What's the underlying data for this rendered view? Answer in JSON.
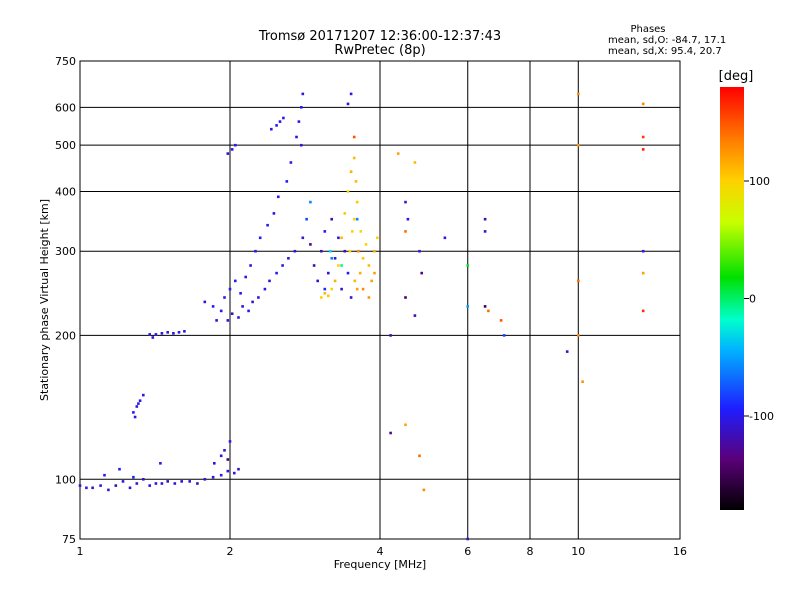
{
  "chart_data": {
    "type": "scatter",
    "title": "Tromsø 20171207 12:36:00-12:37:43",
    "subtitle": "RwPretec (8p)",
    "xlabel": "Frequency [MHz]",
    "ylabel": "Stationary phase Virtual Height [km]",
    "x_scale": "log",
    "y_scale": "log",
    "xlim": [
      1,
      16
    ],
    "ylim": [
      75,
      750
    ],
    "x_ticks": [
      1,
      2,
      4,
      6,
      8,
      10,
      16
    ],
    "x_tick_labels": [
      "1",
      "2",
      "4",
      "6",
      "8",
      "10",
      "16"
    ],
    "y_ticks": [
      75,
      100,
      200,
      300,
      400,
      500,
      600,
      750
    ],
    "y_tick_labels": [
      "75",
      "100",
      "200",
      "300",
      "400",
      "500",
      "600",
      "750"
    ],
    "grid": true,
    "stats": {
      "title": "Phases",
      "line1": "mean, sd,O: -84.7, 17.1",
      "line2": "mean, sd,X:  95.4, 20.7"
    },
    "colorbar": {
      "label": "[deg]",
      "range": [
        -180,
        180
      ],
      "ticks": [
        100,
        0,
        -100
      ],
      "tick_labels": [
        "100",
        "0",
        "-100"
      ]
    },
    "series": [
      {
        "color_by": "phase",
        "points": [
          [
            1.0,
            97,
            -110
          ],
          [
            1.03,
            96,
            -105
          ],
          [
            1.06,
            96,
            -112
          ],
          [
            1.1,
            97,
            -100
          ],
          [
            1.14,
            95,
            -108
          ],
          [
            1.18,
            97,
            -115
          ],
          [
            1.22,
            99,
            -104
          ],
          [
            1.26,
            96,
            -110
          ],
          [
            1.3,
            98,
            -106
          ],
          [
            1.34,
            100,
            -111
          ],
          [
            1.38,
            97,
            -103
          ],
          [
            1.42,
            98,
            -109
          ],
          [
            1.46,
            98,
            -107
          ],
          [
            1.5,
            99,
            -112
          ],
          [
            1.55,
            98,
            -104
          ],
          [
            1.6,
            99,
            -110
          ],
          [
            1.66,
            99,
            -106
          ],
          [
            1.72,
            98,
            -113
          ],
          [
            1.78,
            100,
            -105
          ],
          [
            1.85,
            101,
            -108
          ],
          [
            1.92,
            102,
            -102
          ],
          [
            1.98,
            104,
            -110
          ],
          [
            2.04,
            103,
            -100
          ],
          [
            2.08,
            105,
            -112
          ],
          [
            1.12,
            102,
            -100
          ],
          [
            1.2,
            105,
            -95
          ],
          [
            1.28,
            101,
            -90
          ],
          [
            1.45,
            108,
            -100
          ],
          [
            1.86,
            108,
            -110
          ],
          [
            1.92,
            112,
            -108
          ],
          [
            1.95,
            115,
            -104
          ],
          [
            2.0,
            120,
            -100
          ],
          [
            1.98,
            110,
            -140
          ],
          [
            1.28,
            138,
            -100
          ],
          [
            1.3,
            142,
            -104
          ],
          [
            1.32,
            146,
            -98
          ],
          [
            1.34,
            150,
            -102
          ],
          [
            1.29,
            135,
            -106
          ],
          [
            1.31,
            144,
            -100
          ],
          [
            1.38,
            201,
            -100
          ],
          [
            1.42,
            201,
            -104
          ],
          [
            1.46,
            202,
            -98
          ],
          [
            1.5,
            203,
            -102
          ],
          [
            1.54,
            202,
            -106
          ],
          [
            1.58,
            203,
            -100
          ],
          [
            1.62,
            204,
            -104
          ],
          [
            1.4,
            198,
            -110
          ],
          [
            1.78,
            235,
            -105
          ],
          [
            1.85,
            230,
            -100
          ],
          [
            1.88,
            215,
            -110
          ],
          [
            1.92,
            225,
            -104
          ],
          [
            1.95,
            240,
            -98
          ],
          [
            1.98,
            215,
            -106
          ],
          [
            2.0,
            250,
            -102
          ],
          [
            2.02,
            222,
            -110
          ],
          [
            2.05,
            260,
            -100
          ],
          [
            2.08,
            218,
            -104
          ],
          [
            2.1,
            245,
            -98
          ],
          [
            2.12,
            230,
            -106
          ],
          [
            2.15,
            265,
            -102
          ],
          [
            2.18,
            225,
            -100
          ],
          [
            2.2,
            280,
            -104
          ],
          [
            2.22,
            235,
            -108
          ],
          [
            2.25,
            300,
            -95
          ],
          [
            2.28,
            240,
            -102
          ],
          [
            2.3,
            320,
            -98
          ],
          [
            2.35,
            250,
            -106
          ],
          [
            2.38,
            340,
            -100
          ],
          [
            2.4,
            260,
            -110
          ],
          [
            2.45,
            360,
            -104
          ],
          [
            2.48,
            270,
            -98
          ],
          [
            2.5,
            390,
            -102
          ],
          [
            2.55,
            280,
            -100
          ],
          [
            2.6,
            420,
            -95
          ],
          [
            2.62,
            290,
            -106
          ],
          [
            2.65,
            460,
            -100
          ],
          [
            2.7,
            300,
            -104
          ],
          [
            2.72,
            520,
            -110
          ],
          [
            2.75,
            560,
            -100
          ],
          [
            2.78,
            600,
            -98
          ],
          [
            2.8,
            640,
            -102
          ],
          [
            2.78,
            500,
            -105
          ],
          [
            2.8,
            320,
            -100
          ],
          [
            2.85,
            350,
            -80
          ],
          [
            2.9,
            380,
            -60
          ],
          [
            1.98,
            480,
            -110
          ],
          [
            2.02,
            490,
            -104
          ],
          [
            2.05,
            500,
            -100
          ],
          [
            2.42,
            540,
            -102
          ],
          [
            2.48,
            550,
            -98
          ],
          [
            2.52,
            560,
            -106
          ],
          [
            2.56,
            570,
            -100
          ],
          [
            2.9,
            310,
            -130
          ],
          [
            2.95,
            280,
            -120
          ],
          [
            3.0,
            260,
            -110
          ],
          [
            3.05,
            300,
            -115
          ],
          [
            3.1,
            330,
            -100
          ],
          [
            3.15,
            270,
            -110
          ],
          [
            3.2,
            350,
            -120
          ],
          [
            3.25,
            290,
            -100
          ],
          [
            3.3,
            320,
            -105
          ],
          [
            3.35,
            250,
            -110
          ],
          [
            3.4,
            300,
            -115
          ],
          [
            3.45,
            270,
            -100
          ],
          [
            3.5,
            240,
            -108
          ],
          [
            3.1,
            250,
            -90
          ],
          [
            3.2,
            290,
            -60
          ],
          [
            3.18,
            300,
            -30
          ],
          [
            3.35,
            280,
            -10
          ],
          [
            3.05,
            240,
            100
          ],
          [
            3.1,
            245,
            110
          ],
          [
            3.15,
            242,
            105
          ],
          [
            3.2,
            250,
            95
          ],
          [
            3.25,
            260,
            115
          ],
          [
            3.3,
            280,
            100
          ],
          [
            3.35,
            320,
            110
          ],
          [
            3.4,
            360,
            105
          ],
          [
            3.45,
            400,
            100
          ],
          [
            3.5,
            440,
            115
          ],
          [
            3.55,
            470,
            110
          ],
          [
            3.48,
            300,
            95
          ],
          [
            3.52,
            330,
            100
          ],
          [
            3.56,
            260,
            110
          ],
          [
            3.6,
            250,
            120
          ],
          [
            3.65,
            270,
            115
          ],
          [
            3.7,
            290,
            105
          ],
          [
            3.75,
            310,
            100
          ],
          [
            3.8,
            280,
            110
          ],
          [
            3.85,
            260,
            120
          ],
          [
            3.9,
            300,
            115
          ],
          [
            3.95,
            320,
            100
          ],
          [
            3.7,
            250,
            130
          ],
          [
            3.8,
            240,
            125
          ],
          [
            3.9,
            270,
            120
          ],
          [
            3.55,
            350,
            100
          ],
          [
            3.6,
            380,
            105
          ],
          [
            3.58,
            420,
            110
          ],
          [
            3.62,
            300,
            130
          ],
          [
            3.66,
            330,
            95
          ],
          [
            3.5,
            640,
            -100
          ],
          [
            3.55,
            520,
            150
          ],
          [
            3.45,
            610,
            -110
          ],
          [
            3.6,
            350,
            -60
          ],
          [
            4.35,
            480,
            120
          ],
          [
            4.5,
            380,
            -110
          ],
          [
            4.55,
            350,
            -100
          ],
          [
            4.7,
            460,
            110
          ],
          [
            4.8,
            300,
            -100
          ],
          [
            4.85,
            270,
            -130
          ],
          [
            4.5,
            330,
            140
          ],
          [
            5.4,
            320,
            -100
          ],
          [
            4.5,
            240,
            -140
          ],
          [
            4.7,
            220,
            -120
          ],
          [
            4.2,
            200,
            -120
          ],
          [
            4.2,
            125,
            -130
          ],
          [
            4.5,
            130,
            120
          ],
          [
            4.8,
            112,
            140
          ],
          [
            4.9,
            95,
            130
          ],
          [
            6.0,
            280,
            10
          ],
          [
            6.0,
            230,
            -50
          ],
          [
            6.5,
            350,
            -120
          ],
          [
            6.5,
            330,
            -110
          ],
          [
            6.5,
            230,
            -150
          ],
          [
            6.6,
            225,
            140
          ],
          [
            7.0,
            215,
            150
          ],
          [
            7.1,
            200,
            -80
          ],
          [
            9.5,
            185,
            -110
          ],
          [
            10.0,
            640,
            130
          ],
          [
            10.0,
            500,
            125
          ],
          [
            10.0,
            260,
            140
          ],
          [
            10.0,
            200,
            130
          ],
          [
            10.2,
            160,
            125
          ],
          [
            13.5,
            610,
            130
          ],
          [
            13.5,
            520,
            160
          ],
          [
            13.5,
            490,
            170
          ],
          [
            13.5,
            300,
            -100
          ],
          [
            13.5,
            270,
            120
          ],
          [
            13.5,
            225,
            165
          ],
          [
            6.0,
            75,
            -110
          ]
        ]
      }
    ]
  }
}
